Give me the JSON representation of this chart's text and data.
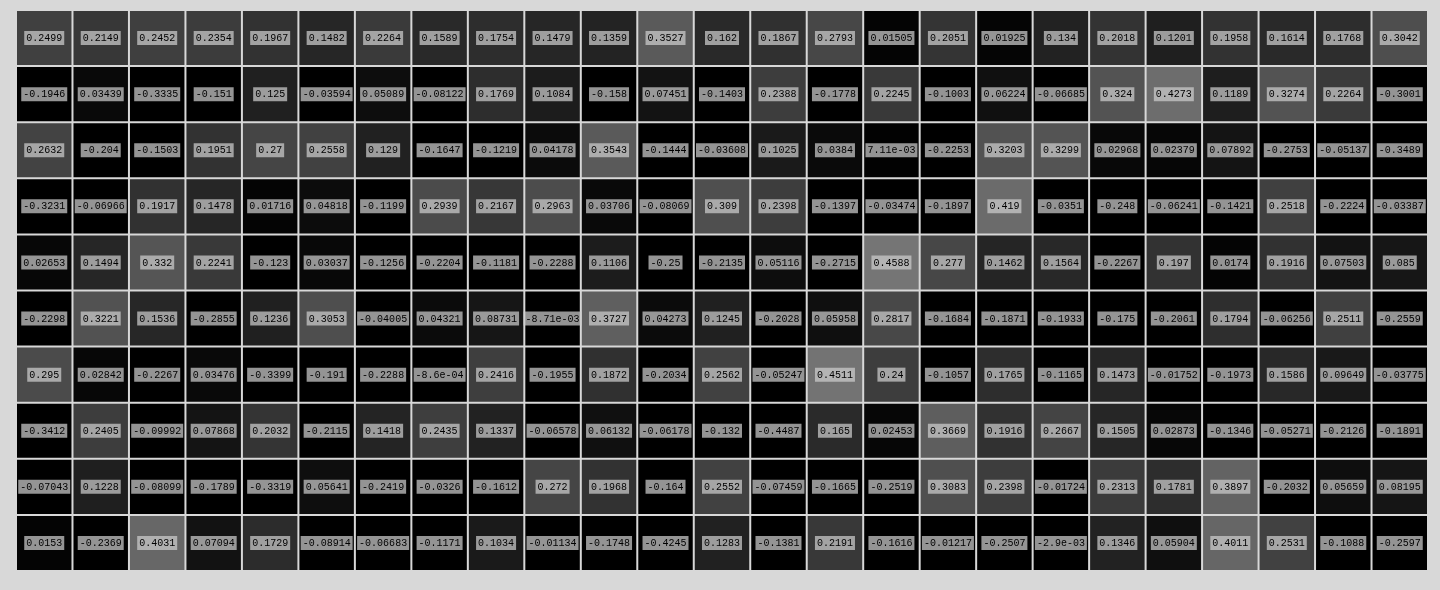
{
  "chart_data": {
    "type": "heatmap",
    "tick_labels": false,
    "categories": [
      null,
      null,
      null,
      null,
      null,
      null,
      null,
      null,
      null,
      null,
      null,
      null,
      null,
      null,
      null,
      null,
      null,
      null,
      null,
      null,
      null,
      null,
      null,
      null,
      null
    ],
    "y_categories": [
      null,
      null,
      null,
      null,
      null,
      null,
      null,
      null,
      null,
      null
    ],
    "cells": [
      [
        0.2499,
        0.2149,
        0.2452,
        0.2354,
        0.1967,
        0.1482,
        0.2264,
        0.1589,
        0.1754,
        0.1479,
        0.1359,
        0.3527,
        0.162,
        0.1867,
        0.2793,
        0.01505,
        0.2051,
        0.01925,
        0.134,
        0.2018,
        0.1201,
        0.1958,
        0.1614,
        0.1768,
        0.3042
      ],
      [
        -0.1946,
        0.03439,
        -0.3335,
        -0.151,
        0.125,
        -0.03594,
        0.05089,
        -0.08122,
        0.1769,
        0.1084,
        -0.158,
        0.07451,
        -0.1403,
        0.2388,
        -0.1778,
        0.2245,
        -0.1003,
        0.06224,
        -0.06685,
        0.324,
        0.4273,
        0.1189,
        0.3274,
        0.2264,
        -0.3001
      ],
      [
        0.2632,
        -0.204,
        -0.1503,
        0.1951,
        0.27,
        0.2558,
        0.129,
        -0.1647,
        -0.1219,
        0.04178,
        0.3543,
        -0.1444,
        -0.03608,
        0.1025,
        0.0384,
        0.00711,
        -0.2253,
        0.3203,
        0.3299,
        0.02968,
        0.02379,
        0.07892,
        -0.2753,
        -0.05137,
        -0.3489
      ],
      [
        -0.3231,
        -0.06966,
        0.1917,
        0.1478,
        0.01716,
        0.04818,
        -0.1199,
        0.2939,
        0.2167,
        0.2963,
        0.03706,
        -0.08069,
        0.309,
        0.2398,
        -0.1397,
        -0.03474,
        -0.1897,
        0.419,
        -0.0351,
        -0.248,
        -0.06241,
        -0.1421,
        0.2518,
        -0.2224,
        -0.03387
      ],
      [
        0.02653,
        0.1494,
        0.332,
        0.2241,
        -0.123,
        0.03037,
        -0.1256,
        -0.2204,
        -0.1181,
        -0.2288,
        0.1106,
        -0.25,
        -0.2135,
        0.05116,
        -0.2715,
        0.4588,
        0.277,
        0.1462,
        0.1564,
        -0.2267,
        0.197,
        0.0174,
        0.1916,
        0.07503,
        0.085
      ],
      [
        -0.2298,
        0.3221,
        0.1536,
        -0.2855,
        0.1236,
        0.3053,
        -0.04005,
        0.04321,
        0.08731,
        -0.00871,
        0.3727,
        0.04273,
        0.1245,
        -0.2028,
        0.05958,
        0.2817,
        -0.1684,
        -0.1871,
        -0.1933,
        -0.175,
        -0.2061,
        0.1794,
        -0.06256,
        0.2511,
        -0.2559
      ],
      [
        0.295,
        0.02842,
        -0.2267,
        0.03476,
        -0.3399,
        -0.191,
        -0.2288,
        -0.00086,
        0.2416,
        -0.1955,
        0.1872,
        -0.2034,
        0.2562,
        -0.05247,
        0.4511,
        0.24,
        -0.1057,
        0.1765,
        -0.1165,
        0.1473,
        -0.01752,
        -0.1973,
        0.1586,
        0.09649,
        -0.03775
      ],
      [
        -0.3412,
        0.2405,
        -0.09992,
        0.07868,
        0.2032,
        -0.2115,
        0.1418,
        0.2435,
        0.1337,
        -0.06578,
        0.06132,
        -0.06178,
        -0.132,
        -0.4487,
        0.165,
        0.02453,
        0.3669,
        0.1916,
        0.2667,
        0.1505,
        0.02873,
        -0.1346,
        -0.05271,
        -0.2126,
        -0.1891
      ],
      [
        -0.07043,
        0.1228,
        -0.08099,
        -0.1789,
        -0.3319,
        0.05641,
        -0.2419,
        -0.0326,
        -0.1612,
        0.272,
        0.1968,
        -0.164,
        0.2552,
        -0.07459,
        -0.1665,
        -0.2519,
        0.3083,
        0.2398,
        -0.01724,
        0.2313,
        0.1781,
        0.3897,
        -0.2032,
        0.05659,
        0.08195
      ],
      [
        0.0153,
        -0.2369,
        0.4031,
        0.07094,
        0.1729,
        -0.08914,
        -0.06683,
        -0.1171,
        0.1034,
        -0.01134,
        -0.1748,
        -0.4245,
        0.1283,
        -0.1381,
        0.2191,
        -0.1616,
        -0.01217,
        -0.2507,
        -0.0029,
        0.1346,
        0.05904,
        0.4011,
        0.2531,
        -0.1088,
        -0.2597
      ]
    ],
    "cell_labels": [
      [
        "0.2499",
        "0.2149",
        "0.2452",
        "0.2354",
        "0.1967",
        "0.1482",
        "0.2264",
        "0.1589",
        "0.1754",
        "0.1479",
        "0.1359",
        "0.3527",
        "0.162",
        "0.1867",
        "0.2793",
        "0.01505",
        "0.2051",
        "0.01925",
        "0.134",
        "0.2018",
        "0.1201",
        "0.1958",
        "0.1614",
        "0.1768",
        "0.3042"
      ],
      [
        "-0.1946",
        "0.03439",
        "-0.3335",
        "-0.151",
        "0.125",
        "-0.03594",
        "0.05089",
        "-0.08122",
        "0.1769",
        "0.1084",
        "-0.158",
        "0.07451",
        "-0.1403",
        "0.2388",
        "-0.1778",
        "0.2245",
        "-0.1003",
        "0.06224",
        "-0.06685",
        "0.324",
        "0.4273",
        "0.1189",
        "0.3274",
        "0.2264",
        "-0.3001"
      ],
      [
        "0.2632",
        "-0.204",
        "-0.1503",
        "0.1951",
        "0.27",
        "0.2558",
        "0.129",
        "-0.1647",
        "-0.1219",
        "0.04178",
        "0.3543",
        "-0.1444",
        "-0.03608",
        "0.1025",
        "0.0384",
        "7.11e-03",
        "-0.2253",
        "0.3203",
        "0.3299",
        "0.02968",
        "0.02379",
        "0.07892",
        "-0.2753",
        "-0.05137",
        "-0.3489"
      ],
      [
        "-0.3231",
        "-0.06966",
        "0.1917",
        "0.1478",
        "0.01716",
        "0.04818",
        "-0.1199",
        "0.2939",
        "0.2167",
        "0.2963",
        "0.03706",
        "-0.08069",
        "0.309",
        "0.2398",
        "-0.1397",
        "-0.03474",
        "-0.1897",
        "0.419",
        "-0.0351",
        "-0.248",
        "-0.06241",
        "-0.1421",
        "0.2518",
        "-0.2224",
        "-0.03387"
      ],
      [
        "0.02653",
        "0.1494",
        "0.332",
        "0.2241",
        "-0.123",
        "0.03037",
        "-0.1256",
        "-0.2204",
        "-0.1181",
        "-0.2288",
        "0.1106",
        "-0.25",
        "-0.2135",
        "0.05116",
        "-0.2715",
        "0.4588",
        "0.277",
        "0.1462",
        "0.1564",
        "-0.2267",
        "0.197",
        "0.0174",
        "0.1916",
        "0.07503",
        "0.085"
      ],
      [
        "-0.2298",
        "0.3221",
        "0.1536",
        "-0.2855",
        "0.1236",
        "0.3053",
        "-0.04005",
        "0.04321",
        "0.08731",
        "-8.71e-03",
        "0.3727",
        "0.04273",
        "0.1245",
        "-0.2028",
        "0.05958",
        "0.2817",
        "-0.1684",
        "-0.1871",
        "-0.1933",
        "-0.175",
        "-0.2061",
        "0.1794",
        "-0.06256",
        "0.2511",
        "-0.2559"
      ],
      [
        "0.295",
        "0.02842",
        "-0.2267",
        "0.03476",
        "-0.3399",
        "-0.191",
        "-0.2288",
        "-8.6e-04",
        "0.2416",
        "-0.1955",
        "0.1872",
        "-0.2034",
        "0.2562",
        "-0.05247",
        "0.4511",
        "0.24",
        "-0.1057",
        "0.1765",
        "-0.1165",
        "0.1473",
        "-0.01752",
        "-0.1973",
        "0.1586",
        "0.09649",
        "-0.03775"
      ],
      [
        "-0.3412",
        "0.2405",
        "-0.09992",
        "0.07868",
        "0.2032",
        "-0.2115",
        "0.1418",
        "0.2435",
        "0.1337",
        "-0.06578",
        "0.06132",
        "-0.06178",
        "-0.132",
        "-0.4487",
        "0.165",
        "0.02453",
        "0.3669",
        "0.1916",
        "0.2667",
        "0.1505",
        "0.02873",
        "-0.1346",
        "-0.05271",
        "-0.2126",
        "-0.1891"
      ],
      [
        "-0.07043",
        "0.1228",
        "-0.08099",
        "-0.1789",
        "-0.3319",
        "0.05641",
        "-0.2419",
        "-0.0326",
        "-0.1612",
        "0.272",
        "0.1968",
        "-0.164",
        "0.2552",
        "-0.07459",
        "-0.1665",
        "-0.2519",
        "0.3083",
        "0.2398",
        "-0.01724",
        "0.2313",
        "0.1781",
        "0.3897",
        "-0.2032",
        "0.05659",
        "0.08195"
      ],
      [
        "0.0153",
        "-0.2369",
        "0.4031",
        "0.07094",
        "0.1729",
        "-0.08914",
        "-0.06683",
        "-0.1171",
        "0.1034",
        "-0.01134",
        "-0.1748",
        "-0.4245",
        "0.1283",
        "-0.1381",
        "0.2191",
        "-0.1616",
        "-0.01217",
        "-0.2507",
        "-2.9e-03",
        "0.1346",
        "0.05904",
        "0.4011",
        "0.2531",
        "-0.1088",
        "-0.2597"
      ]
    ]
  }
}
